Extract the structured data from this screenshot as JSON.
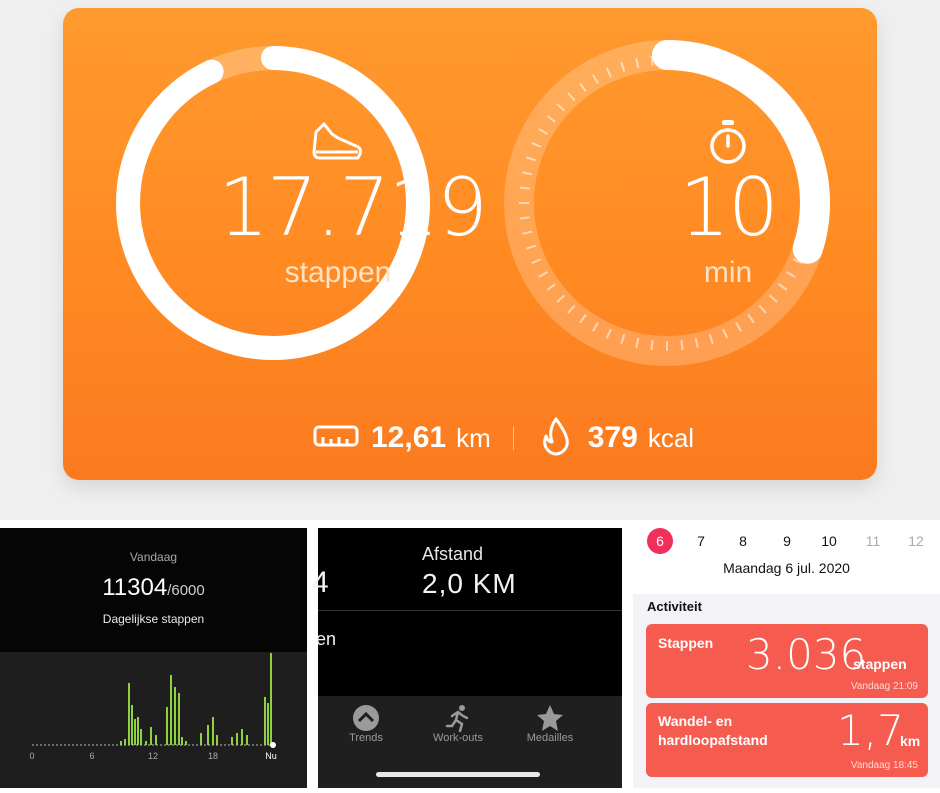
{
  "summary": {
    "steps": {
      "value": "17.719",
      "unit": "stappen",
      "icon": "shoe-icon",
      "progress_fraction": 0.93
    },
    "active_time": {
      "value": "10",
      "unit": "min",
      "icon": "stopwatch-icon",
      "progress_fraction": 0.3
    },
    "distance": {
      "value": "12,61",
      "unit": "km",
      "icon": "ruler-icon"
    },
    "calories": {
      "value": "379",
      "unit": "kcal",
      "icon": "flame-icon"
    },
    "colors": {
      "card_top": "#ff9a2e",
      "card_bottom": "#fb7a20",
      "ring": "#ffffff"
    }
  },
  "daily": {
    "title": "Vandaag",
    "steps": "11304",
    "goal": "/6000",
    "subtitle": "Dagelijkse stappen",
    "axis_labels": [
      "0",
      "6",
      "12",
      "18",
      "Nu"
    ],
    "bar_color": "#8fd13f"
  },
  "workout": {
    "truncated_value": "4",
    "truncated_label": "en",
    "distance_label": "Afstand",
    "distance_value": "2,0 KM",
    "tabs": [
      {
        "label": "Trends",
        "icon": "trends-icon"
      },
      {
        "label": "Work-outs",
        "icon": "running-icon"
      },
      {
        "label": "Medailles",
        "icon": "medal-icon"
      }
    ]
  },
  "health": {
    "dates": [
      {
        "day": "6",
        "selected": true
      },
      {
        "day": "7"
      },
      {
        "day": "8"
      },
      {
        "day": "9"
      },
      {
        "day": "10"
      },
      {
        "day": "11",
        "dim": true
      },
      {
        "day": "12",
        "dim": true
      }
    ],
    "date_title": "Maandag 6 jul. 2020",
    "section": "Activiteit",
    "steps_tile": {
      "title": "Stappen",
      "value": "3.036",
      "unit": "stappen",
      "timestamp": "Vandaag 21:09"
    },
    "distance_tile": {
      "title_line1": "Wandel- en",
      "title_line2": "hardloopafstand",
      "value": "1,7",
      "unit": "km",
      "timestamp": "Vandaag 18:45"
    },
    "accent": "#f65b4f",
    "selected_color": "#f0305a"
  }
}
